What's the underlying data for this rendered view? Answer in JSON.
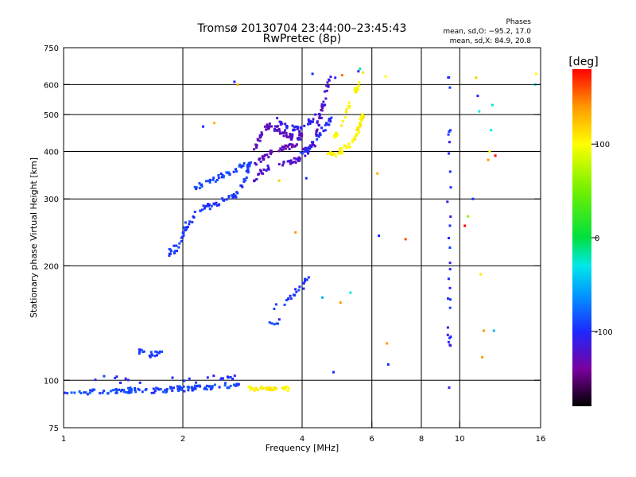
{
  "chart_data": {
    "type": "scatter",
    "title": "Tromsø 20130704 23:44:00–23:45:43",
    "subtitle": "RwPretec (8p)",
    "xlabel": "Frequency [MHz]",
    "ylabel": "Stationary phase Virtual Height [km]",
    "x_scale": "log",
    "y_scale": "log",
    "xlim": [
      1,
      16
    ],
    "ylim": [
      75,
      750
    ],
    "x_ticks": [
      1,
      2,
      4,
      6,
      8,
      10,
      16
    ],
    "x_tick_labels": [
      "1",
      "2",
      "4",
      "6",
      "8",
      "10",
      "16"
    ],
    "x_gridlines": [
      2,
      4,
      6,
      8,
      10
    ],
    "y_ticks": [
      75,
      100,
      200,
      300,
      400,
      500,
      600,
      750
    ],
    "y_tick_labels": [
      "75",
      "100",
      "200",
      "300",
      "400",
      "500",
      "600",
      "750"
    ],
    "y_gridlines": [
      100,
      200,
      300,
      400,
      500,
      600
    ],
    "grid": true,
    "stats": {
      "heading": "Phases",
      "line_o": "mean, sd,O: −95.2, 17.0",
      "line_x": "mean, sd,X:  84.9, 20.8"
    },
    "colorbar": {
      "label": "[deg]",
      "range": [
        -180,
        180
      ],
      "ticks": [
        100,
        0,
        -100
      ],
      "tick_labels": [
        "100",
        "0",
        "-100"
      ],
      "stops": [
        {
          "v": -180,
          "color": "#000000"
        },
        {
          "v": -140,
          "color": "#7a00a0"
        },
        {
          "v": -100,
          "color": "#1e28ff"
        },
        {
          "v": -60,
          "color": "#0099ff"
        },
        {
          "v": -30,
          "color": "#00e8e8"
        },
        {
          "v": 0,
          "color": "#00e040"
        },
        {
          "v": 50,
          "color": "#70f000"
        },
        {
          "v": 100,
          "color": "#ffff00"
        },
        {
          "v": 140,
          "color": "#ff9900"
        },
        {
          "v": 180,
          "color": "#ff0000"
        }
      ]
    },
    "series": [
      {
        "phase": -90,
        "trace": [
          [
            1.0,
            93
          ],
          [
            1.15,
            93
          ],
          [
            1.3,
            93
          ],
          [
            1.45,
            94
          ],
          [
            1.6,
            94
          ],
          [
            1.75,
            94
          ],
          [
            1.9,
            95
          ],
          [
            2.05,
            95
          ],
          [
            2.2,
            96
          ],
          [
            2.4,
            96
          ],
          [
            2.6,
            97
          ],
          [
            2.8,
            97
          ]
        ],
        "spread": 1.5,
        "count": 130
      },
      {
        "phase": -95,
        "trace": [
          [
            1.5,
            120
          ],
          [
            1.6,
            118
          ],
          [
            1.7,
            116
          ],
          [
            1.8,
            122
          ]
        ],
        "spread": 2,
        "count": 18
      },
      {
        "phase": -100,
        "trace": [
          [
            1.1,
            100
          ],
          [
            1.3,
            101
          ],
          [
            1.55,
            99
          ],
          [
            1.8,
            100
          ],
          [
            2.1,
            100
          ],
          [
            2.4,
            101
          ],
          [
            2.7,
            101
          ]
        ],
        "spread": 2,
        "count": 22
      },
      {
        "phase": -95,
        "trace": [
          [
            1.85,
            215
          ],
          [
            1.98,
            232
          ],
          [
            2.05,
            255
          ],
          [
            2.15,
            275
          ],
          [
            2.3,
            285
          ],
          [
            2.5,
            295
          ],
          [
            2.7,
            305
          ],
          [
            2.85,
            330
          ],
          [
            2.92,
            355
          ],
          [
            2.95,
            380
          ]
        ],
        "spread": 5,
        "count": 90
      },
      {
        "phase": -90,
        "trace": [
          [
            2.1,
            320
          ],
          [
            2.3,
            330
          ],
          [
            2.5,
            345
          ],
          [
            2.7,
            355
          ],
          [
            2.85,
            370
          ]
        ],
        "spread": 5,
        "count": 40
      },
      {
        "phase": -120,
        "trace": [
          [
            2.95,
            330
          ],
          [
            3.1,
            350
          ],
          [
            3.3,
            362
          ],
          [
            3.5,
            370
          ],
          [
            3.7,
            375
          ],
          [
            3.9,
            380
          ],
          [
            4.1,
            390
          ],
          [
            4.3,
            420
          ],
          [
            4.4,
            470
          ],
          [
            4.5,
            520
          ],
          [
            4.6,
            575
          ],
          [
            4.7,
            630
          ]
        ],
        "spread": 5,
        "count": 80
      },
      {
        "phase": -125,
        "trace": [
          [
            3.0,
            400
          ],
          [
            3.15,
            440
          ],
          [
            3.3,
            470
          ],
          [
            3.5,
            455
          ],
          [
            3.7,
            440
          ],
          [
            3.9,
            430
          ],
          [
            4.0,
            455
          ]
        ],
        "spread": 8,
        "count": 70
      },
      {
        "phase": -130,
        "trace": [
          [
            3.05,
            370
          ],
          [
            3.3,
            395
          ],
          [
            3.6,
            410
          ],
          [
            3.9,
            415
          ],
          [
            4.2,
            405
          ]
        ],
        "spread": 6,
        "count": 45
      },
      {
        "phase": -110,
        "trace": [
          [
            3.4,
            490
          ],
          [
            3.6,
            470
          ],
          [
            3.8,
            460
          ],
          [
            4.0,
            465
          ],
          [
            4.2,
            480
          ],
          [
            4.4,
            500
          ]
        ],
        "spread": 6,
        "count": 35
      },
      {
        "phase": -100,
        "trace": [
          [
            4.0,
            395
          ],
          [
            4.2,
            410
          ],
          [
            4.4,
            440
          ],
          [
            4.6,
            470
          ],
          [
            4.8,
            500
          ]
        ],
        "spread": 6,
        "count": 30
      },
      {
        "phase": 105,
        "trace": [
          [
            4.6,
            390
          ],
          [
            4.9,
            395
          ],
          [
            5.1,
            405
          ],
          [
            5.3,
            420
          ],
          [
            5.5,
            440
          ],
          [
            5.6,
            470
          ],
          [
            5.7,
            500
          ]
        ],
        "spread": 6,
        "count": 60
      },
      {
        "phase": 100,
        "trace": [
          [
            4.8,
            430
          ],
          [
            5.0,
            460
          ],
          [
            5.2,
            510
          ],
          [
            5.4,
            560
          ],
          [
            5.6,
            620
          ]
        ],
        "spread": 6,
        "count": 30
      },
      {
        "phase": -95,
        "trace": [
          [
            3.4,
            155
          ],
          [
            3.6,
            160
          ],
          [
            3.85,
            170
          ],
          [
            4.0,
            175
          ],
          [
            4.15,
            190
          ]
        ],
        "spread": 3,
        "count": 22
      },
      {
        "phase": -95,
        "trace": [
          [
            3.3,
            140
          ],
          [
            3.5,
            143
          ]
        ],
        "spread": 2,
        "count": 6
      },
      {
        "phase": 105,
        "trace": [
          [
            2.95,
            95
          ],
          [
            3.2,
            95
          ],
          [
            3.45,
            95
          ],
          [
            3.7,
            95
          ]
        ],
        "spread": 1.2,
        "count": 40
      },
      {
        "phase": -100,
        "trace": [
          [
            9.4,
            90
          ],
          [
            9.4,
            660
          ]
        ],
        "spread": 0.4,
        "count": 30
      }
    ],
    "extra_points": [
      [
        2.25,
        465,
        -100
      ],
      [
        2.4,
        475,
        130
      ],
      [
        2.7,
        610,
        -100
      ],
      [
        2.75,
        600,
        130
      ],
      [
        3.5,
        335,
        120
      ],
      [
        3.85,
        245,
        140
      ],
      [
        4.1,
        340,
        -100
      ],
      [
        4.25,
        640,
        -100
      ],
      [
        4.85,
        625,
        -110
      ],
      [
        5.05,
        635,
        150
      ],
      [
        5.55,
        650,
        -100
      ],
      [
        5.6,
        660,
        -20
      ],
      [
        5.7,
        645,
        110
      ],
      [
        6.2,
        350,
        130
      ],
      [
        6.25,
        240,
        -100
      ],
      [
        6.5,
        630,
        100
      ],
      [
        6.55,
        125,
        140
      ],
      [
        6.6,
        110,
        -100
      ],
      [
        7.3,
        235,
        160
      ],
      [
        5.0,
        160,
        140
      ],
      [
        5.3,
        170,
        -30
      ],
      [
        4.8,
        105,
        -100
      ],
      [
        4.5,
        165,
        -50
      ],
      [
        10.3,
        255,
        180
      ],
      [
        10.5,
        270,
        60
      ],
      [
        10.8,
        300,
        -100
      ],
      [
        11.0,
        625,
        120
      ],
      [
        11.1,
        560,
        -100
      ],
      [
        11.2,
        510,
        -30
      ],
      [
        11.3,
        190,
        110
      ],
      [
        11.4,
        115,
        140
      ],
      [
        11.5,
        135,
        140
      ],
      [
        11.8,
        380,
        140
      ],
      [
        11.9,
        400,
        100
      ],
      [
        12.0,
        455,
        -30
      ],
      [
        12.1,
        530,
        -30
      ],
      [
        12.2,
        135,
        -50
      ],
      [
        12.3,
        390,
        180
      ],
      [
        15.5,
        600,
        -30
      ],
      [
        15.6,
        640,
        100
      ]
    ]
  }
}
